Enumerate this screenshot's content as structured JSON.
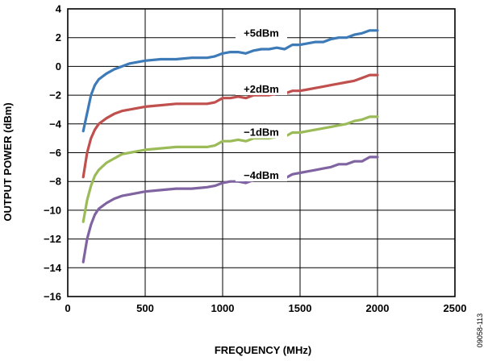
{
  "chart_data": {
    "type": "line",
    "xlabel": "FREQUENCY (MHz)",
    "ylabel": "OUTPUT POWER (dBm)",
    "xlim": [
      0,
      2500
    ],
    "ylim": [
      -16,
      4
    ],
    "x_ticks": [
      "0",
      "500",
      "1000",
      "1500",
      "2000",
      "2500"
    ],
    "y_ticks": [
      "4",
      "2",
      "0",
      "−2",
      "−4",
      "−6",
      "−8",
      "−10",
      "−12",
      "−14",
      "−16"
    ],
    "grid": true,
    "figure_id": "09058-113",
    "series": [
      {
        "name": "+5dBm",
        "color": "#3d7ab8",
        "x": [
          100,
          130,
          150,
          175,
          200,
          250,
          300,
          350,
          400,
          500,
          600,
          700,
          800,
          900,
          950,
          1000,
          1050,
          1100,
          1150,
          1200,
          1250,
          1300,
          1350,
          1400,
          1450,
          1500,
          1550,
          1600,
          1650,
          1700,
          1750,
          1800,
          1850,
          1900,
          1950,
          2000
        ],
        "y": [
          -4.5,
          -3.0,
          -2.0,
          -1.3,
          -0.9,
          -0.5,
          -0.2,
          0.0,
          0.2,
          0.4,
          0.5,
          0.5,
          0.6,
          0.6,
          0.7,
          0.9,
          1.0,
          1.0,
          0.9,
          1.1,
          1.2,
          1.2,
          1.3,
          1.2,
          1.5,
          1.5,
          1.6,
          1.7,
          1.7,
          1.9,
          2.0,
          2.0,
          2.2,
          2.3,
          2.5,
          2.5
        ]
      },
      {
        "name": "+2dBm",
        "color": "#c0504d",
        "x": [
          100,
          125,
          150,
          175,
          200,
          250,
          300,
          350,
          400,
          500,
          600,
          700,
          800,
          900,
          950,
          1000,
          1050,
          1100,
          1150,
          1200,
          1250,
          1300,
          1350,
          1400,
          1450,
          1500,
          1550,
          1600,
          1650,
          1700,
          1750,
          1800,
          1850,
          1900,
          1950,
          2000
        ],
        "y": [
          -7.7,
          -6.0,
          -5.0,
          -4.4,
          -4.0,
          -3.6,
          -3.3,
          -3.1,
          -3.0,
          -2.8,
          -2.7,
          -2.6,
          -2.6,
          -2.6,
          -2.5,
          -2.2,
          -2.2,
          -2.1,
          -2.2,
          -2.0,
          -2.0,
          -2.0,
          -1.9,
          -1.9,
          -1.7,
          -1.7,
          -1.6,
          -1.5,
          -1.4,
          -1.3,
          -1.2,
          -1.1,
          -1.0,
          -0.8,
          -0.6,
          -0.6
        ]
      },
      {
        "name": "−1dBm",
        "color": "#9bbb59",
        "x": [
          100,
          125,
          150,
          175,
          200,
          250,
          300,
          350,
          400,
          500,
          600,
          700,
          800,
          900,
          950,
          1000,
          1050,
          1100,
          1150,
          1200,
          1250,
          1300,
          1350,
          1400,
          1450,
          1500,
          1550,
          1600,
          1650,
          1700,
          1750,
          1800,
          1850,
          1900,
          1950,
          2000
        ],
        "y": [
          -10.8,
          -9.3,
          -8.3,
          -7.6,
          -7.2,
          -6.7,
          -6.4,
          -6.1,
          -6.0,
          -5.8,
          -5.7,
          -5.6,
          -5.6,
          -5.6,
          -5.5,
          -5.2,
          -5.2,
          -5.1,
          -5.2,
          -5.0,
          -5.0,
          -5.0,
          -4.9,
          -4.9,
          -4.6,
          -4.6,
          -4.5,
          -4.4,
          -4.3,
          -4.2,
          -4.1,
          -4.0,
          -3.8,
          -3.7,
          -3.5,
          -3.5
        ]
      },
      {
        "name": "−4dBm",
        "color": "#8064a2",
        "x": [
          100,
          125,
          150,
          175,
          200,
          250,
          300,
          350,
          400,
          500,
          600,
          700,
          800,
          900,
          950,
          1000,
          1050,
          1100,
          1150,
          1200,
          1250,
          1300,
          1350,
          1400,
          1450,
          1500,
          1550,
          1600,
          1650,
          1700,
          1750,
          1800,
          1850,
          1900,
          1950,
          2000
        ],
        "y": [
          -13.6,
          -12.0,
          -11.0,
          -10.3,
          -9.9,
          -9.5,
          -9.2,
          -9.0,
          -8.9,
          -8.7,
          -8.6,
          -8.5,
          -8.5,
          -8.4,
          -8.3,
          -8.1,
          -8.0,
          -8.0,
          -8.1,
          -7.9,
          -7.9,
          -7.8,
          -7.7,
          -7.8,
          -7.5,
          -7.4,
          -7.3,
          -7.2,
          -7.1,
          -7.0,
          -6.8,
          -6.8,
          -6.6,
          -6.6,
          -6.3,
          -6.3
        ]
      }
    ]
  }
}
